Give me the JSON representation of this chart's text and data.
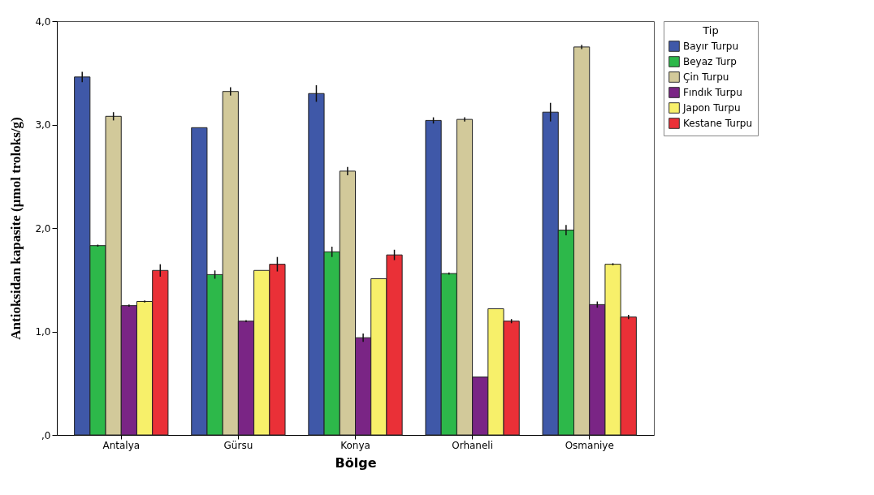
{
  "chart_data": {
    "type": "bar",
    "xlabel": "Bölge",
    "ylabel": "Antioksidan kapasite (µmol troloks/g)",
    "legend_title": "Tip",
    "legend": "top right",
    "categories": [
      "Antalya",
      "Gürsu",
      "Konya",
      "Orhaneli",
      "Osmaniye"
    ],
    "ylim": [
      0,
      4
    ],
    "yticks": [
      {
        "value": 0,
        "label": ",0"
      },
      {
        "value": 1,
        "label": "1,0"
      },
      {
        "value": 2,
        "label": "2,0"
      },
      {
        "value": 3,
        "label": "3,0"
      },
      {
        "value": 4,
        "label": "4,0"
      }
    ],
    "series": [
      {
        "name": "Bayır Turpu",
        "color": "#3f58a8",
        "values": [
          3.46,
          2.97,
          3.3,
          3.04,
          3.12
        ],
        "errors": [
          0.05,
          null,
          0.08,
          0.03,
          0.09
        ]
      },
      {
        "name": "Beyaz Turp",
        "color": "#2db84a",
        "values": [
          1.83,
          1.55,
          1.77,
          1.56,
          1.98
        ],
        "errors": [
          0.01,
          0.04,
          0.05,
          0.01,
          0.05
        ]
      },
      {
        "name": "Çin Turpu",
        "color": "#d2c99a",
        "values": [
          3.08,
          3.32,
          2.55,
          3.05,
          3.75
        ],
        "errors": [
          0.04,
          0.04,
          0.04,
          0.02,
          0.02
        ]
      },
      {
        "name": "Fındık Turpu",
        "color": "#7a2585",
        "values": [
          1.25,
          1.1,
          0.94,
          0.56,
          1.26
        ],
        "errors": [
          0.01,
          0.01,
          0.04,
          null,
          0.03
        ]
      },
      {
        "name": "Japon Turpu",
        "color": "#f7f06a",
        "values": [
          1.29,
          1.59,
          1.51,
          1.22,
          1.65
        ],
        "errors": [
          0.01,
          null,
          null,
          null,
          0.01
        ]
      },
      {
        "name": "Kestane Turpu",
        "color": "#ea3037",
        "values": [
          1.59,
          1.65,
          1.74,
          1.1,
          1.14
        ],
        "errors": [
          0.06,
          0.07,
          0.05,
          0.02,
          0.02
        ]
      }
    ]
  }
}
